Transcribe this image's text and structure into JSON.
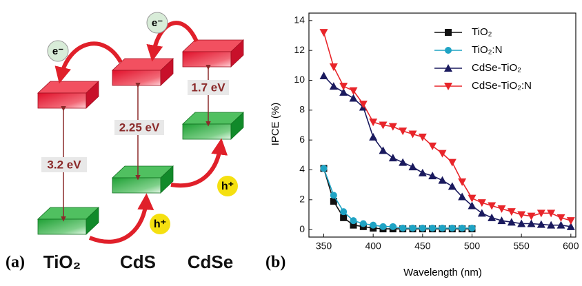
{
  "panel_a": {
    "label": "(a)",
    "materials": [
      "TiO₂",
      "CdS",
      "CdSe"
    ],
    "gaps": [
      "3.2 eV",
      "2.25 eV",
      "1.7 eV"
    ],
    "electron": "e⁻",
    "hole": "h⁺"
  },
  "chart_data": {
    "type": "line",
    "label": "(b)",
    "x_label": "Wavelength (nm)",
    "y_label": "IPCE (%)",
    "x": [
      350,
      360,
      370,
      380,
      390,
      400,
      410,
      420,
      430,
      440,
      450,
      460,
      470,
      480,
      490,
      500,
      510,
      520,
      530,
      540,
      550,
      560,
      570,
      580,
      590,
      600
    ],
    "series": [
      {
        "name": "TiO₂",
        "color": "#111111",
        "marker": "square",
        "values": [
          4.1,
          1.9,
          0.8,
          0.3,
          0.2,
          0.1,
          0.05,
          0.05,
          0.05,
          0.05,
          0.05,
          0.05,
          0.05,
          0.05,
          0.05,
          0.05,
          null,
          null,
          null,
          null,
          null,
          null,
          null,
          null,
          null,
          null
        ]
      },
      {
        "name": "TiO₂:N",
        "color": "#1fa3c4",
        "marker": "circle",
        "values": [
          4.1,
          2.3,
          1.2,
          0.6,
          0.4,
          0.3,
          0.2,
          0.2,
          0.1,
          0.1,
          0.1,
          0.1,
          0.1,
          0.1,
          0.1,
          0.1,
          null,
          null,
          null,
          null,
          null,
          null,
          null,
          null,
          null,
          null
        ]
      },
      {
        "name": "CdSe-TiO₂",
        "color": "#1a1a5e",
        "marker": "triangle-up",
        "values": [
          10.3,
          9.6,
          9.2,
          8.8,
          8.2,
          6.2,
          5.3,
          4.8,
          4.5,
          4.2,
          3.8,
          3.6,
          3.3,
          2.9,
          2.2,
          1.6,
          1.1,
          0.8,
          0.6,
          0.5,
          0.4,
          0.4,
          0.35,
          0.3,
          0.3,
          0.2
        ]
      },
      {
        "name": "CdSe-TiO₂:N",
        "color": "#e8252a",
        "marker": "triangle-down",
        "values": [
          13.2,
          10.9,
          9.6,
          9.3,
          8.4,
          7.2,
          7.0,
          6.9,
          6.6,
          6.4,
          6.2,
          5.6,
          5.1,
          4.5,
          3.2,
          2.1,
          1.8,
          1.6,
          1.4,
          1.2,
          1.0,
          0.9,
          1.1,
          1.1,
          0.8,
          0.6
        ]
      }
    ],
    "xlim": [
      335,
      605
    ],
    "ylim": [
      -0.5,
      14.5
    ],
    "xticks": [
      350,
      400,
      450,
      500,
      550,
      600
    ],
    "yticks": [
      0,
      2,
      4,
      6,
      8,
      10,
      12,
      14
    ],
    "legend": "upper right"
  }
}
